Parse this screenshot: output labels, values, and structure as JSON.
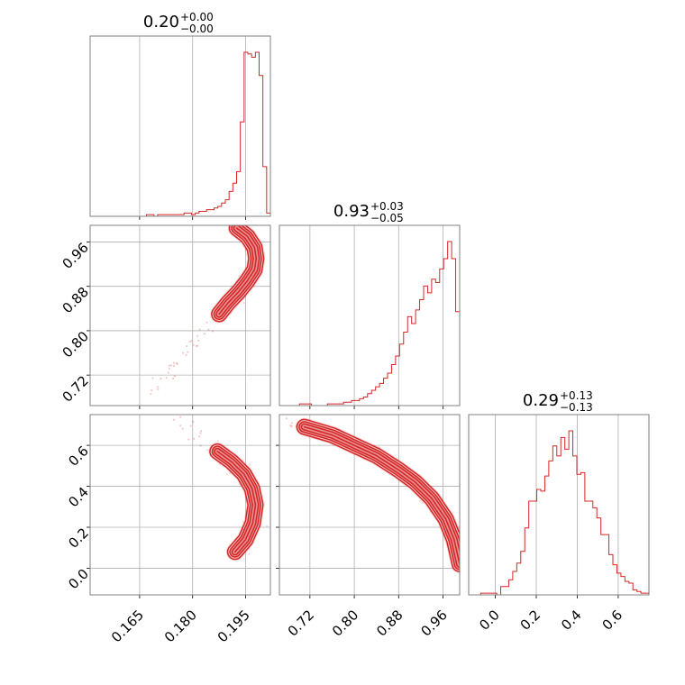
{
  "chart_data": {
    "type": "corner",
    "color": "#d62728",
    "grid": true,
    "titles": [
      {
        "value": "0.20",
        "plus": "+0.00",
        "minus": "−0.00"
      },
      {
        "value": "0.93",
        "plus": "+0.03",
        "minus": "−0.05"
      },
      {
        "value": "0.29",
        "plus": "+0.13",
        "minus": "−0.13"
      }
    ],
    "params": [
      {
        "range": [
          0.151,
          0.202
        ],
        "ticks": [
          0.165,
          0.18,
          0.195
        ],
        "tick_labels": [
          "0.165",
          "0.180",
          "0.195"
        ]
      },
      {
        "range": [
          0.665,
          0.99
        ],
        "ticks": [
          0.72,
          0.8,
          0.88,
          0.96
        ],
        "tick_labels": [
          "0.72",
          "0.80",
          "0.88",
          "0.96"
        ]
      },
      {
        "range": [
          -0.13,
          0.75
        ],
        "ticks": [
          0.0,
          0.2,
          0.4,
          0.6
        ],
        "tick_labels": [
          "0.0",
          "0.2",
          "0.4",
          "0.6"
        ]
      }
    ],
    "histograms": [
      {
        "param": 0,
        "bin_start": 0.151,
        "bin_end": 0.202,
        "counts": [
          0,
          0,
          0,
          0,
          0,
          0,
          0,
          0,
          0,
          0,
          0,
          0,
          0,
          0,
          0,
          1,
          1,
          0,
          1,
          1,
          1,
          1,
          1,
          1,
          1,
          2,
          2,
          1,
          2,
          3,
          3,
          4,
          4,
          5,
          6,
          8,
          10,
          15,
          20,
          27,
          57,
          99,
          98,
          96,
          99,
          85,
          30,
          2
        ]
      },
      {
        "param": 1,
        "bin_start": 0.665,
        "bin_end": 0.99,
        "counts": [
          0,
          0,
          0,
          0,
          0,
          1,
          1,
          1,
          0,
          0,
          0,
          0,
          1,
          1,
          1,
          1,
          2,
          2,
          3,
          3,
          4,
          5,
          7,
          9,
          11,
          13,
          16,
          19,
          24,
          29,
          36,
          43,
          52,
          48,
          56,
          62,
          70,
          66,
          74,
          72,
          80,
          86,
          96,
          86,
          55
        ]
      },
      {
        "param": 2,
        "bin_start": -0.13,
        "bin_end": 0.75,
        "counts": [
          0,
          0,
          0,
          1,
          1,
          1,
          1,
          0,
          5,
          5,
          9,
          14,
          19,
          26,
          40,
          56,
          56,
          63,
          62,
          71,
          80,
          89,
          83,
          94,
          87,
          98,
          83,
          72,
          73,
          56,
          56,
          52,
          46,
          36,
          36,
          24,
          18,
          13,
          11,
          8,
          7,
          3,
          2,
          1,
          1
        ]
      }
    ],
    "joint": [
      {
        "x_param": 0,
        "y_param": 1,
        "ridge": [
          [
            0.1875,
            0.83
          ],
          [
            0.19,
            0.85
          ],
          [
            0.193,
            0.87
          ],
          [
            0.1955,
            0.89
          ],
          [
            0.1975,
            0.91
          ],
          [
            0.198,
            0.93
          ],
          [
            0.1975,
            0.95
          ],
          [
            0.1955,
            0.97
          ],
          [
            0.1925,
            0.985
          ]
        ]
      },
      {
        "x_param": 0,
        "y_param": 2,
        "ridge": [
          [
            0.187,
            0.57
          ],
          [
            0.191,
            0.52
          ],
          [
            0.1945,
            0.46
          ],
          [
            0.1968,
            0.39
          ],
          [
            0.1978,
            0.31
          ],
          [
            0.197,
            0.22
          ],
          [
            0.195,
            0.14
          ],
          [
            0.192,
            0.08
          ]
        ]
      },
      {
        "x_param": 1,
        "y_param": 2,
        "ridge": [
          [
            0.71,
            0.69
          ],
          [
            0.76,
            0.65
          ],
          [
            0.8,
            0.6
          ],
          [
            0.84,
            0.55
          ],
          [
            0.88,
            0.48
          ],
          [
            0.91,
            0.42
          ],
          [
            0.94,
            0.34
          ],
          [
            0.965,
            0.24
          ],
          [
            0.98,
            0.14
          ],
          [
            0.99,
            0.02
          ]
        ]
      }
    ]
  }
}
